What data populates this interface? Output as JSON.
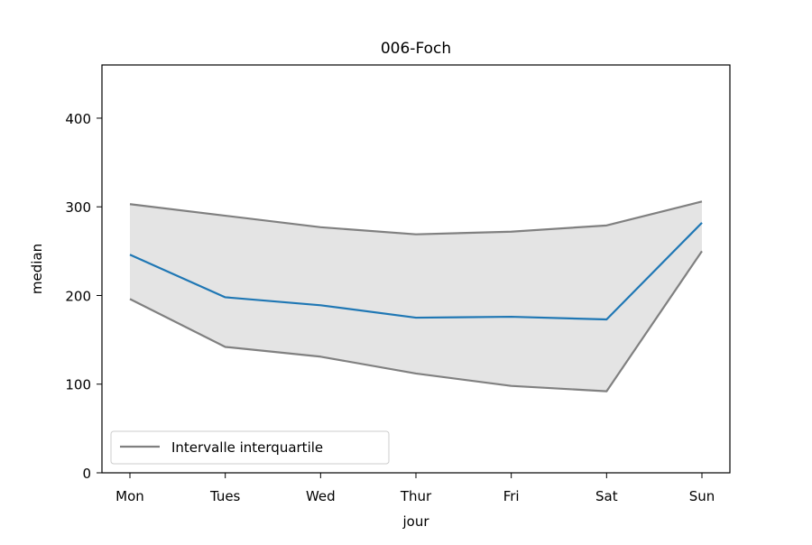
{
  "chart_data": {
    "type": "line",
    "title": "006-Foch",
    "xlabel": "jour",
    "ylabel": "median",
    "categories": [
      "Mon",
      "Tues",
      "Wed",
      "Thur",
      "Fri",
      "Sat",
      "Sun"
    ],
    "ylim": [
      0,
      460
    ],
    "yticks": [
      0,
      100,
      200,
      300,
      400
    ],
    "series": [
      {
        "values": [
          246,
          198,
          189,
          175,
          176,
          173,
          282
        ],
        "color": "#1f77b4"
      }
    ],
    "band": {
      "name": "Intervalle interquartile",
      "upper": [
        303,
        290,
        277,
        269,
        272,
        279,
        306
      ],
      "lower": [
        196,
        142,
        131,
        112,
        98,
        92,
        250
      ],
      "line_color": "#808080",
      "fill_color": "#e4e4e4"
    },
    "legend_location": "lower-left",
    "grid": false
  }
}
